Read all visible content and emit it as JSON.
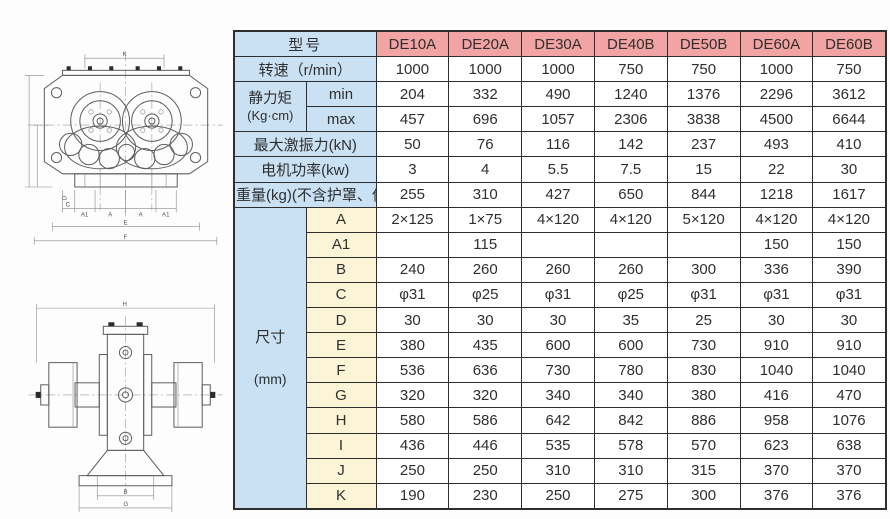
{
  "table": {
    "model_header": {
      "label": "型号",
      "models": [
        "DE10A",
        "DE20A",
        "DE30A",
        "DE40B",
        "DE50B",
        "DE60A",
        "DE60B"
      ]
    },
    "speed": {
      "label": "转速（r/min）",
      "values": [
        "1000",
        "1000",
        "1000",
        "750",
        "750",
        "1000",
        "750"
      ]
    },
    "static_moment": {
      "label": "静力矩",
      "unit": "(Kg·cm)",
      "min": {
        "label": "min",
        "values": [
          "204",
          "332",
          "490",
          "1240",
          "1376",
          "2296",
          "3612"
        ]
      },
      "max": {
        "label": "max",
        "values": [
          "457",
          "696",
          "1057",
          "2306",
          "3838",
          "4500",
          "6644"
        ]
      }
    },
    "excite_force": {
      "label": "最大激振力(kN)",
      "values": [
        "50",
        "76",
        "116",
        "142",
        "237",
        "493",
        "410"
      ]
    },
    "motor_power": {
      "label": "电机功率(kw)",
      "values": [
        "3",
        "4",
        "5.5",
        "7.5",
        "15",
        "22",
        "30"
      ]
    },
    "weight": {
      "label": "重量(kg)(不含护罩、偏心块)",
      "values": [
        "255",
        "310",
        "427",
        "650",
        "844",
        "1218",
        "1617"
      ]
    },
    "dimensions": {
      "label": "尺寸",
      "unit": "(mm)",
      "rows": [
        {
          "letter": "A",
          "values": [
            "2×125",
            "1×75",
            "4×120",
            "4×120",
            "5×120",
            "4×120",
            "4×120"
          ]
        },
        {
          "letter": "A1",
          "values": [
            "",
            "115",
            "",
            "",
            "",
            "150",
            "150"
          ]
        },
        {
          "letter": "B",
          "values": [
            "240",
            "260",
            "260",
            "260",
            "300",
            "336",
            "390"
          ]
        },
        {
          "letter": "C",
          "values": [
            "φ31",
            "φ25",
            "φ31",
            "φ25",
            "φ31",
            "φ31",
            "φ31"
          ]
        },
        {
          "letter": "D",
          "values": [
            "30",
            "30",
            "30",
            "35",
            "25",
            "30",
            "30"
          ]
        },
        {
          "letter": "E",
          "values": [
            "380",
            "435",
            "600",
            "600",
            "730",
            "910",
            "910"
          ]
        },
        {
          "letter": "F",
          "values": [
            "536",
            "636",
            "730",
            "780",
            "830",
            "1040",
            "1040"
          ]
        },
        {
          "letter": "G",
          "values": [
            "320",
            "320",
            "340",
            "340",
            "380",
            "416",
            "470"
          ]
        },
        {
          "letter": "H",
          "values": [
            "580",
            "586",
            "642",
            "842",
            "886",
            "958",
            "1076"
          ]
        },
        {
          "letter": "I",
          "values": [
            "436",
            "446",
            "535",
            "578",
            "570",
            "623",
            "638"
          ]
        },
        {
          "letter": "J",
          "values": [
            "250",
            "250",
            "310",
            "310",
            "315",
            "370",
            "370"
          ]
        },
        {
          "letter": "K",
          "values": [
            "190",
            "230",
            "250",
            "275",
            "300",
            "376",
            "376"
          ]
        }
      ]
    }
  },
  "drawings": {
    "top": {
      "k": "K",
      "c": "C",
      "a1": "A1",
      "a": "A",
      "e": "E",
      "f": "F",
      "d": "D"
    },
    "bottom": {
      "h": "H",
      "b": "B",
      "g": "G"
    }
  },
  "colors": {
    "model_header_bg": "#f2a3a3",
    "label_bg": "#c9e1f3",
    "dim_letter_bg": "#fbf4d7",
    "grid_border": "#2e2e2e"
  }
}
